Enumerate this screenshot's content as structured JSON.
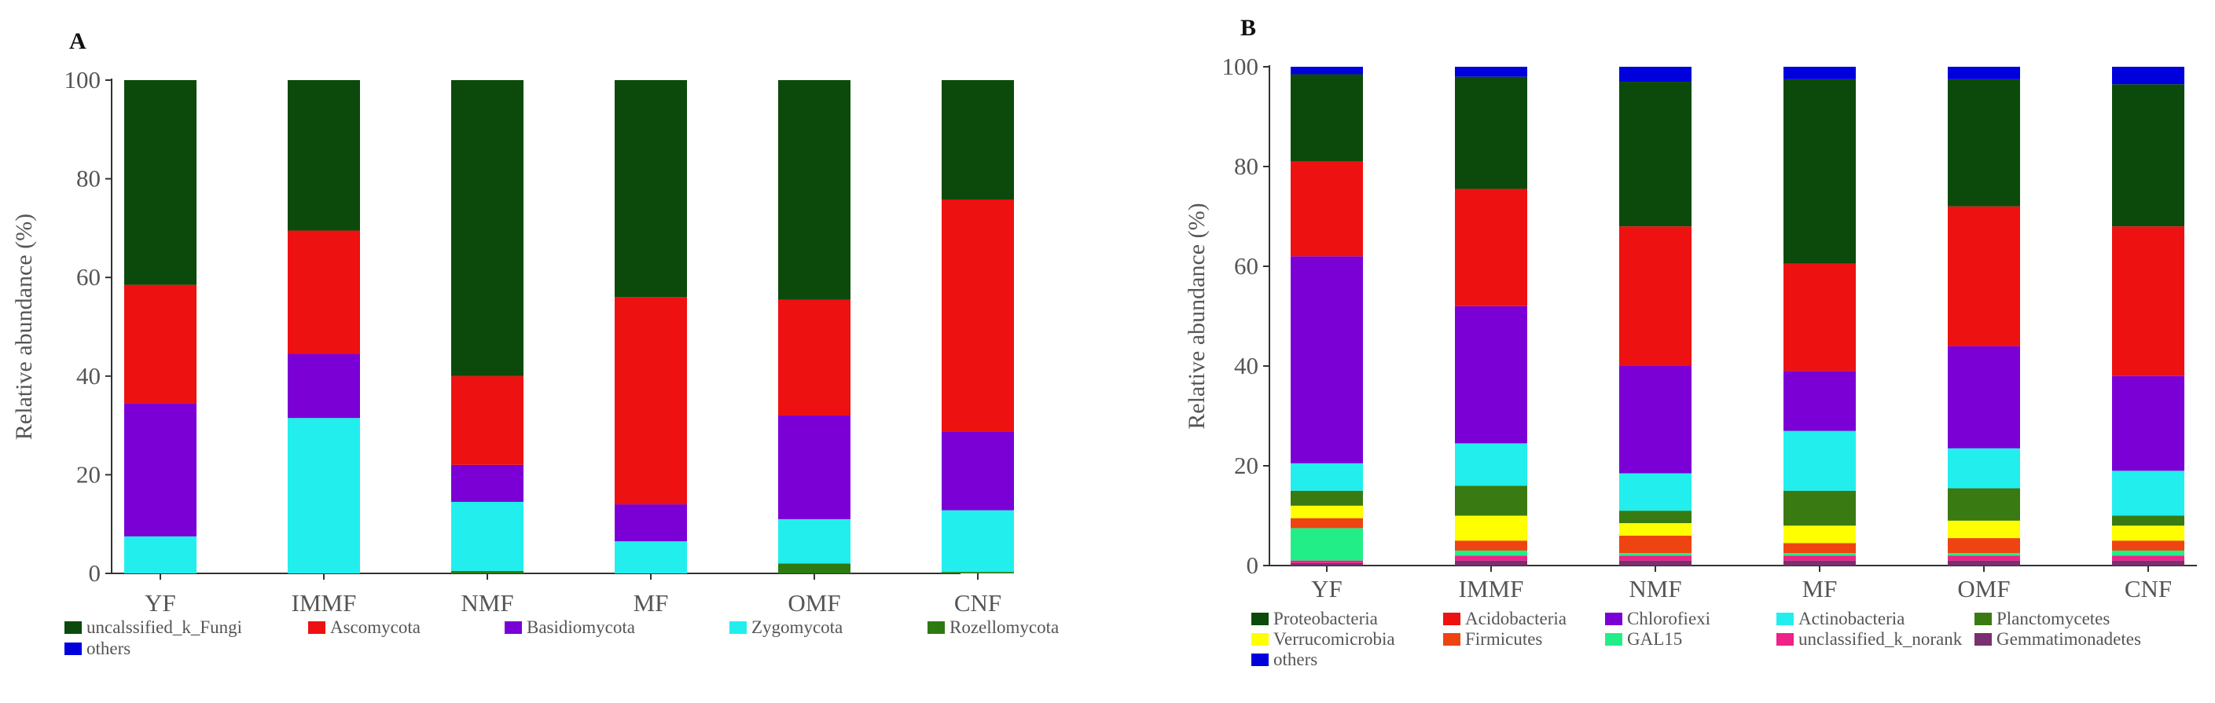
{
  "chart_data": [
    {
      "type": "bar",
      "stacked": true,
      "panel_label": "A",
      "title": "",
      "xlabel": "",
      "ylabel": "Relative abundance (%)",
      "ylim": [
        0,
        100
      ],
      "yticks": [
        0,
        20,
        40,
        60,
        80,
        100
      ],
      "grid": false,
      "legend_position": "bottom",
      "categories": [
        "YF",
        "IMMF",
        "NMF",
        "MF",
        "OMF",
        "CNF"
      ],
      "series": [
        {
          "name": "others",
          "color": "#0000dd",
          "values": [
            0,
            0,
            0,
            0,
            0,
            0
          ]
        },
        {
          "name": "Rozellomycota",
          "color": "#2d7a12",
          "values": [
            0,
            0,
            0.5,
            0,
            2,
            0.3
          ]
        },
        {
          "name": "Zygomycota",
          "color": "#22eeee",
          "values": [
            7.5,
            31.5,
            14,
            6.5,
            9,
            12.5
          ]
        },
        {
          "name": "Basidiomycota",
          "color": "#7a00d6",
          "values": [
            27,
            13,
            7.5,
            7.5,
            21,
            16
          ]
        },
        {
          "name": "Ascomycota",
          "color": "#ee1111",
          "values": [
            24,
            25,
            18,
            42,
            23.5,
            47
          ]
        },
        {
          "name": "uncalssified_k_Fungi",
          "color": "#0b4a0b",
          "values": [
            41.5,
            30.5,
            60,
            44,
            44.5,
            24.2
          ]
        }
      ],
      "legend": [
        "uncalssified_k_Fungi",
        "Ascomycota",
        "Basidiomycota",
        "Zygomycota",
        "Rozellomycota",
        "others"
      ]
    },
    {
      "type": "bar",
      "stacked": true,
      "panel_label": "B",
      "title": "",
      "xlabel": "",
      "ylabel": "Relative abundance (%)",
      "ylim": [
        0,
        100
      ],
      "yticks": [
        0,
        20,
        40,
        60,
        80,
        100
      ],
      "grid": false,
      "legend_position": "bottom",
      "categories": [
        "YF",
        "IMMF",
        "NMF",
        "MF",
        "OMF",
        "CNF"
      ],
      "series": [
        {
          "name": "Gemmatimonadetes",
          "color": "#7a2f6e",
          "values": [
            0.5,
            1,
            1,
            1,
            1,
            1
          ]
        },
        {
          "name": "unclassified_k_norank",
          "color": "#ee2288",
          "values": [
            0.5,
            1,
            1,
            1,
            1,
            1
          ]
        },
        {
          "name": "GAL15",
          "color": "#22ee88",
          "values": [
            6.5,
            1,
            0.5,
            0.5,
            0.5,
            1
          ]
        },
        {
          "name": "Firmicutes",
          "color": "#ee4411",
          "values": [
            2,
            2,
            3.5,
            2,
            3,
            2
          ]
        },
        {
          "name": "Verrucomicrobia",
          "color": "#ffff00",
          "values": [
            2.5,
            5,
            2.5,
            3.5,
            3.5,
            3
          ]
        },
        {
          "name": "Planctomycetes",
          "color": "#3a7a12",
          "values": [
            3,
            6,
            2.5,
            7,
            6.5,
            2
          ]
        },
        {
          "name": "Actinobacteria",
          "color": "#22eeee",
          "values": [
            5.5,
            8.5,
            7.5,
            12,
            8,
            9
          ]
        },
        {
          "name": "Chlorofiexi",
          "color": "#7a00d6",
          "values": [
            41.5,
            27.5,
            21.5,
            12,
            20.5,
            19
          ]
        },
        {
          "name": "Acidobacteria",
          "color": "#ee1111",
          "values": [
            19,
            23.5,
            28,
            21.5,
            28,
            30
          ]
        },
        {
          "name": "Proteobacteria",
          "color": "#0b4a0b",
          "values": [
            17.5,
            22.5,
            29,
            37,
            25.5,
            28.5
          ]
        },
        {
          "name": "others",
          "color": "#0000dd",
          "values": [
            1.5,
            2,
            3,
            2.5,
            2.5,
            3.5
          ]
        }
      ],
      "legend": [
        "Proteobacteria",
        "Acidobacteria",
        "Chlorofiexi",
        "Actinobacteria",
        "Planctomycetes",
        "Verrucomicrobia",
        "Firmicutes",
        "GAL15",
        "unclassified_k_norank",
        "Gemmatimonadetes",
        "others"
      ]
    }
  ]
}
